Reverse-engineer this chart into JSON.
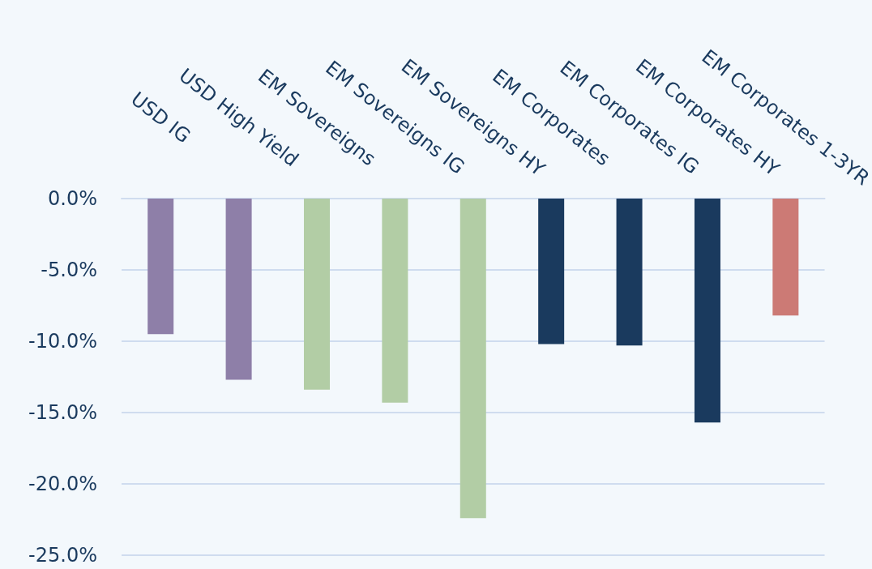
{
  "chart_data": {
    "type": "bar",
    "categories": [
      "USD IG",
      "USD High Yield",
      "EM Sovereigns",
      "EM Sovereigns IG",
      "EM Sovereigns HY",
      "EM Corporates",
      "EM Corporates IG",
      "EM Corporates HY",
      "EM Corporates 1-3YR"
    ],
    "values": [
      -9.5,
      -12.7,
      -13.4,
      -14.3,
      -22.4,
      -10.2,
      -10.3,
      -15.7,
      -8.2
    ],
    "colors": [
      "#8e7fa8",
      "#8e7fa8",
      "#b2cda5",
      "#b2cda5",
      "#b2cda5",
      "#1a3a5e",
      "#1a3a5e",
      "#1a3a5e",
      "#cc7a75"
    ],
    "ylim": [
      -25,
      0
    ],
    "yticks": [
      {
        "value": -25,
        "label": "-25.0%"
      },
      {
        "value": -20,
        "label": "-20.0%"
      },
      {
        "value": -15,
        "label": "-15.0%"
      },
      {
        "value": -10,
        "label": "-10.0%"
      },
      {
        "value": -5,
        "label": "-5.0%"
      },
      {
        "value": 0,
        "label": "0.0%"
      }
    ],
    "grid": "y"
  }
}
